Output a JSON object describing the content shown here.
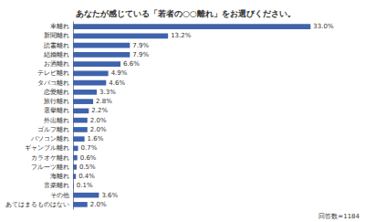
{
  "chart_data": {
    "type": "bar",
    "title": "あなたが感じている「若者の○○離れ」をお選びください。",
    "annotations": [
      "回答数=1184"
    ],
    "orientation": "horizontal",
    "categories": [
      "車離れ",
      "新聞離れ",
      "読書離れ",
      "結婚離れ",
      "お酒離れ",
      "テレビ離れ",
      "タバコ離れ",
      "恋愛離れ",
      "旅行離れ",
      "選挙離れ",
      "外出離れ",
      "ゴルフ離れ",
      "パソコン離れ",
      "ギャンブル離れ",
      "カラオケ離れ",
      "フルーツ離れ",
      "海離れ",
      "音楽離れ",
      "その他",
      "あてはまるものはない"
    ],
    "values": [
      33.0,
      13.2,
      7.9,
      7.9,
      6.6,
      4.9,
      4.6,
      3.3,
      2.8,
      2.2,
      2.0,
      2.0,
      1.6,
      0.7,
      0.6,
      0.5,
      0.4,
      0.1,
      3.6,
      2.0
    ],
    "value_labels": [
      "33.0%",
      "13.2%",
      "7.9%",
      "7.9%",
      "6.6%",
      "4.9%",
      "4.6%",
      "3.3%",
      "2.8%",
      "2.2%",
      "2.0%",
      "2.0%",
      "1.6%",
      "0.7%",
      "0.6%",
      "0.5%",
      "0.4%",
      "0.1%",
      "3.6%",
      "2.0%"
    ],
    "data_labels": true,
    "color": "#3f63ad",
    "xlim": [
      0,
      36
    ],
    "grid": false,
    "tick_labels": "y"
  }
}
